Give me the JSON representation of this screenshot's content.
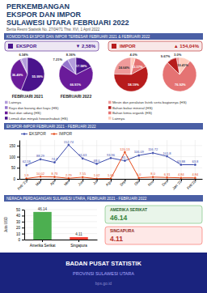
{
  "chart_data": [
    {
      "type": "pie",
      "title": "KOMODITAS EKSPOR DAN IMPOR TERBESAR FEBRUARI 2021 & FEBRUARI 2022",
      "annotations": [
        "PERKEMBANGAN",
        "EKSPOR DAN IMPOR",
        "SULAWESI UTARA FEBRUARI 2022",
        "Berita Resmi Statistik No. 27/04/71 Thw. XVI, 1 April 2022",
        "EKSPOR",
        "▼ 2,58%"
      ],
      "categories": [
        "Lainnya",
        "Kayu dan barang dari kayu (HS)",
        "Ikan dan udang (HS)",
        "Lemak dan minyak hewan/nabati (HS)"
      ],
      "colors": [
        "#b39ddb",
        "#9575cd",
        "#6a1b9a",
        "#4a148c"
      ],
      "data_labels": true,
      "series": [
        {
          "name": "FEBRUARI 2021",
          "values": [
            6.34,
            1.09,
            36.49,
            55.99
          ],
          "value_labels": [
            "6.34%",
            null,
            "36.49%",
            "55.99%"
          ]
        },
        {
          "name": "FEBRUARI 2022",
          "values": [
            8.36,
            7.21,
            66.91,
            17.58
          ],
          "value_labels": [
            "8.36%",
            "7.21%",
            "66.91%",
            "17.58%"
          ]
        }
      ]
    },
    {
      "type": "pie",
      "annotations": [
        "IMPOR",
        "▲ 154,04%"
      ],
      "categories": [
        "Mesin dan peralatan listrik serta bagiannya (HS)",
        "Bahan bakar mineral (HS)",
        "Bahan kimia organik (HS)",
        "Lainnya"
      ],
      "colors": [
        "#ef9a9a",
        "#b71c1c",
        "#e57373",
        "#ffccbc"
      ],
      "data_labels": true,
      "series": [
        {
          "values": [
            24.64,
            58.19,
            13.17,
            4.0
          ],
          "value_labels": [
            "24.64%",
            "58.19%",
            "13.17%",
            "4.0%"
          ]
        },
        {
          "values": [
            3.0,
            9.67,
            76.92,
            10.41
          ],
          "value_labels": [
            "3.0%",
            "9.67%",
            "76.92%",
            "10.41%"
          ]
        }
      ]
    },
    {
      "type": "line",
      "title": "EKSPOR-IMPOR FEBRUARI 2021 - FEBRUARI 2022",
      "categories": [
        "Feb '21",
        "Mar",
        "Apr",
        "Mei",
        "Jun",
        "Jul",
        "Agu",
        "Sep",
        "Okt",
        "Nov",
        "Des",
        "Jan '22",
        "Feb'22"
      ],
      "series": [
        {
          "name": "EKSPOR",
          "color": "#3949ab",
          "values": [
            62.18,
            88.29,
            74.3,
            152.74,
            91.63,
            68.0,
            93.96,
            81.7,
            106.09,
            116.72,
            101.8,
            63.88,
            63.8
          ],
          "value_labels": [
            "62.18",
            "88.29",
            "74.3",
            "152.74",
            "91.63",
            "68.0",
            "93.96",
            "81.7",
            "106.09",
            "116.72",
            "101.8",
            "63.88",
            "63.8"
          ]
        },
        {
          "name": "IMPOR",
          "color": "#e64a19",
          "values": [
            1.9,
            10.02,
            8.73,
            2.79,
            7.55,
            1.02,
            1.65,
            120.13,
            5.0,
            8.0,
            6.31,
            4.84,
            4.84
          ],
          "value_labels": [
            "1.9",
            "10.02",
            "8.73",
            "2.79",
            "7.55",
            "1.02",
            "1.65",
            "120.13",
            "5.0",
            "8.0",
            "6.31",
            "4.84",
            "4.84"
          ]
        }
      ],
      "marker": "circle",
      "ylim": [
        0,
        175
      ],
      "yticks": [
        0,
        50,
        100,
        150
      ],
      "grid": true,
      "legend": "upper left",
      "data_labels": true
    },
    {
      "type": "bar",
      "title": "NERACA PERDAGANGAN SULAWESI UTARA, FEBRUARI 2021 - FEBRUARI 2022",
      "ylabel": "Juta USD",
      "categories": [
        "Amerika Serikat",
        "Singapura"
      ],
      "values": [
        46.14,
        4.11
      ],
      "colors": [
        "#4caf50",
        "#f44336"
      ],
      "ylim": [
        0,
        50
      ],
      "yticks": [
        0,
        10,
        20,
        30,
        40,
        50
      ],
      "grid": "y",
      "data_labels": true,
      "annotations": [
        "AMERIKA SERIKAT",
        "SINGAPURA",
        "BADAN PUSAT STATISTIK",
        "PROVINSI SULAWESI UTARA",
        "bps.go.id"
      ]
    }
  ]
}
